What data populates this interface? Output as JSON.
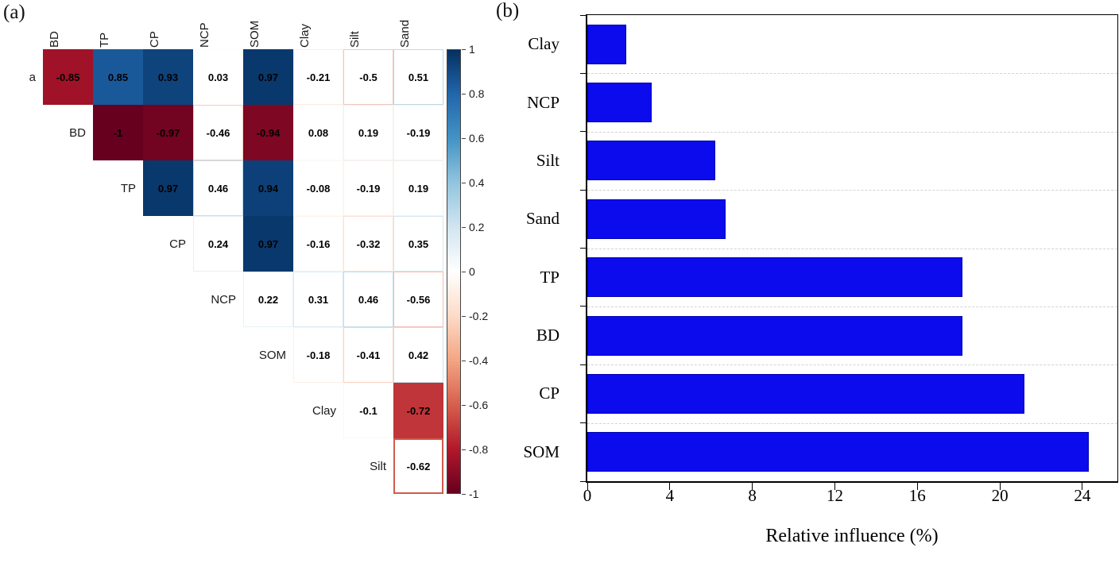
{
  "figure": {
    "panel_a_tag": "(a)",
    "panel_b_tag": "(b)"
  },
  "chart_data": [
    {
      "type": "heatmap",
      "layout": "upper-triangle-correlation-matrix",
      "variables": [
        "a",
        "BD",
        "TP",
        "CP",
        "NCP",
        "SOM",
        "Clay",
        "Silt",
        "Sand"
      ],
      "row_labels": [
        "a",
        "BD",
        "TP",
        "CP",
        "NCP",
        "SOM",
        "Clay",
        "Silt"
      ],
      "col_labels": [
        "BD",
        "TP",
        "CP",
        "NCP",
        "SOM",
        "Clay",
        "Silt",
        "Sand"
      ],
      "cells": [
        {
          "row": "a",
          "col": "BD",
          "value": -0.85,
          "label": "-0.85",
          "filled": true
        },
        {
          "row": "a",
          "col": "TP",
          "value": 0.85,
          "label": "0.85",
          "filled": true
        },
        {
          "row": "a",
          "col": "CP",
          "value": 0.93,
          "label": "0.93",
          "filled": true
        },
        {
          "row": "a",
          "col": "NCP",
          "value": 0.03,
          "label": "0.03",
          "filled": false
        },
        {
          "row": "a",
          "col": "SOM",
          "value": 0.97,
          "label": "0.97",
          "filled": true
        },
        {
          "row": "a",
          "col": "Clay",
          "value": -0.21,
          "label": "-0.21",
          "filled": false
        },
        {
          "row": "a",
          "col": "Silt",
          "value": -0.5,
          "label": "-0.5",
          "filled": false
        },
        {
          "row": "a",
          "col": "Sand",
          "value": 0.51,
          "label": "0.51",
          "filled": false
        },
        {
          "row": "BD",
          "col": "TP",
          "value": -1,
          "label": "-1",
          "filled": true
        },
        {
          "row": "BD",
          "col": "CP",
          "value": -0.97,
          "label": "-0.97",
          "filled": true
        },
        {
          "row": "BD",
          "col": "NCP",
          "value": -0.46,
          "label": "-0.46",
          "filled": false
        },
        {
          "row": "BD",
          "col": "SOM",
          "value": -0.94,
          "label": "-0.94",
          "filled": true
        },
        {
          "row": "BD",
          "col": "Clay",
          "value": 0.08,
          "label": "0.08",
          "filled": false
        },
        {
          "row": "BD",
          "col": "Silt",
          "value": 0.19,
          "label": "0.19",
          "filled": false
        },
        {
          "row": "BD",
          "col": "Sand",
          "value": -0.19,
          "label": "-0.19",
          "filled": false
        },
        {
          "row": "TP",
          "col": "CP",
          "value": 0.97,
          "label": "0.97",
          "filled": true
        },
        {
          "row": "TP",
          "col": "NCP",
          "value": 0.46,
          "label": "0.46",
          "filled": false
        },
        {
          "row": "TP",
          "col": "SOM",
          "value": 0.94,
          "label": "0.94",
          "filled": true
        },
        {
          "row": "TP",
          "col": "Clay",
          "value": -0.08,
          "label": "-0.08",
          "filled": false
        },
        {
          "row": "TP",
          "col": "Silt",
          "value": -0.19,
          "label": "-0.19",
          "filled": false
        },
        {
          "row": "TP",
          "col": "Sand",
          "value": 0.19,
          "label": "0.19",
          "filled": false
        },
        {
          "row": "CP",
          "col": "NCP",
          "value": 0.24,
          "label": "0.24",
          "filled": false
        },
        {
          "row": "CP",
          "col": "SOM",
          "value": 0.97,
          "label": "0.97",
          "filled": true
        },
        {
          "row": "CP",
          "col": "Clay",
          "value": -0.16,
          "label": "-0.16",
          "filled": false
        },
        {
          "row": "CP",
          "col": "Silt",
          "value": -0.32,
          "label": "-0.32",
          "filled": false
        },
        {
          "row": "CP",
          "col": "Sand",
          "value": 0.35,
          "label": "0.35",
          "filled": false
        },
        {
          "row": "NCP",
          "col": "SOM",
          "value": 0.22,
          "label": "0.22",
          "filled": false
        },
        {
          "row": "NCP",
          "col": "Clay",
          "value": 0.31,
          "label": "0.31",
          "filled": false
        },
        {
          "row": "NCP",
          "col": "Silt",
          "value": 0.46,
          "label": "0.46",
          "filled": false
        },
        {
          "row": "NCP",
          "col": "Sand",
          "value": -0.56,
          "label": "-0.56",
          "filled": false
        },
        {
          "row": "SOM",
          "col": "Clay",
          "value": -0.18,
          "label": "-0.18",
          "filled": false
        },
        {
          "row": "SOM",
          "col": "Silt",
          "value": -0.41,
          "label": "-0.41",
          "filled": false
        },
        {
          "row": "SOM",
          "col": "Sand",
          "value": 0.42,
          "label": "0.42",
          "filled": false
        },
        {
          "row": "Clay",
          "col": "Silt",
          "value": -0.1,
          "label": "-0.1",
          "filled": false
        },
        {
          "row": "Clay",
          "col": "Sand",
          "value": -0.72,
          "label": "-0.72",
          "filled": true
        },
        {
          "row": "Silt",
          "col": "Sand",
          "value": -0.62,
          "label": "-0.62",
          "filled": false,
          "outlined": true
        }
      ],
      "colorbar_ticks": [
        "1",
        "0.8",
        "0.6",
        "0.4",
        "0.2",
        "0",
        "-0.2",
        "-0.4",
        "-0.6",
        "-0.8",
        "-1"
      ],
      "colorbar_range": [
        -1,
        1
      ],
      "colormap_stops": [
        {
          "v": -1,
          "c": "#67001f"
        },
        {
          "v": -0.8,
          "c": "#b2182b"
        },
        {
          "v": -0.6,
          "c": "#d6604d"
        },
        {
          "v": -0.4,
          "c": "#f4a582"
        },
        {
          "v": -0.2,
          "c": "#fddbc7"
        },
        {
          "v": 0,
          "c": "#ffffff"
        },
        {
          "v": 0.2,
          "c": "#d1e5f0"
        },
        {
          "v": 0.4,
          "c": "#92c5de"
        },
        {
          "v": 0.6,
          "c": "#4393c4"
        },
        {
          "v": 0.8,
          "c": "#2166ac"
        },
        {
          "v": 1,
          "c": "#053061"
        }
      ]
    },
    {
      "type": "bar",
      "orientation": "horizontal",
      "categories": [
        "Clay",
        "NCP",
        "Silt",
        "Sand",
        "TP",
        "BD",
        "CP",
        "SOM"
      ],
      "values": [
        1.9,
        3.1,
        6.2,
        6.7,
        18.2,
        18.2,
        21.2,
        24.3
      ],
      "xlabel": "Relative influence (%)",
      "x_ticks": [
        0,
        4,
        8,
        12,
        16,
        20,
        24
      ],
      "xlim": [
        0,
        25.7
      ],
      "bar_color": "#0b0bee",
      "grid": "faint-dashed-horizontal",
      "legend": "none",
      "frame": "full-box"
    }
  ]
}
